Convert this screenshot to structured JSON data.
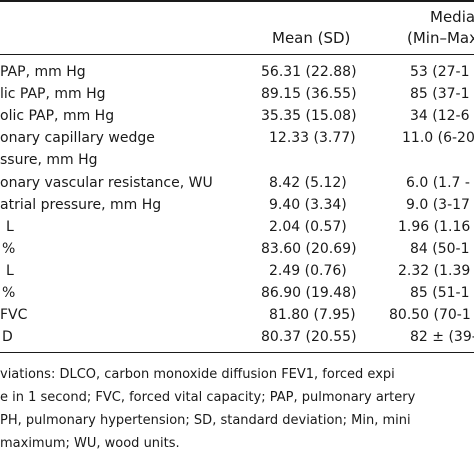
{
  "header": {
    "mean": "Mean (SD)",
    "median_line1": "Median",
    "median_line2": "(Min–Max)"
  },
  "rows": [
    {
      "label": "PAP, mm Hg",
      "mean": "56.31 (22.88)",
      "median": "53 (27-1"
    },
    {
      "label": "lic PAP, mm Hg",
      "mean": "89.15 (36.55)",
      "median": "85 (37-1"
    },
    {
      "label": "olic PAP, mm Hg",
      "mean": "35.35 (15.08)",
      "median": "34 (12-6"
    },
    {
      "label": "onary capillary wedge",
      "mean": "12.33 (3.77)",
      "median": "11.0 (6-20"
    },
    {
      "label": "ssure, mm Hg",
      "mean": "",
      "median": ""
    },
    {
      "label": "onary vascular resistance, WU",
      "mean": "8.42 (5.12)",
      "median": "6.0 (1.7 -"
    },
    {
      "label": "atrial pressure, mm Hg",
      "mean": "9.40 (3.34)",
      "median": "9.0 (3-17"
    },
    {
      "label": "L",
      "mean": "2.04 (0.57)",
      "median": "1.96 (1.16"
    },
    {
      "label": "%",
      "mean": "83.60 (20.69)",
      "median": "84 (50-1"
    },
    {
      "label": "L",
      "mean": "2.49 (0.76)",
      "median": "2.32 (1.39"
    },
    {
      "label": "%",
      "mean": "86.90 (19.48)",
      "median": "85 (51-1"
    },
    {
      "label": "FVC",
      "mean": "81.80 (7.95)",
      "median": "80.50 (70-1"
    },
    {
      "label": "D",
      "mean": "80.37 (20.55)",
      "median": "82 ± (39-"
    }
  ],
  "footnote": [
    "viations: DLCO, carbon monoxide diffusion FEV1, forced expi",
    "e in 1 second; FVC, forced vital capacity; PAP, pulmonary artery",
    "PH, pulmonary hypertension; SD, standard deviation; Min, mini",
    "maximum; WU, wood units."
  ]
}
